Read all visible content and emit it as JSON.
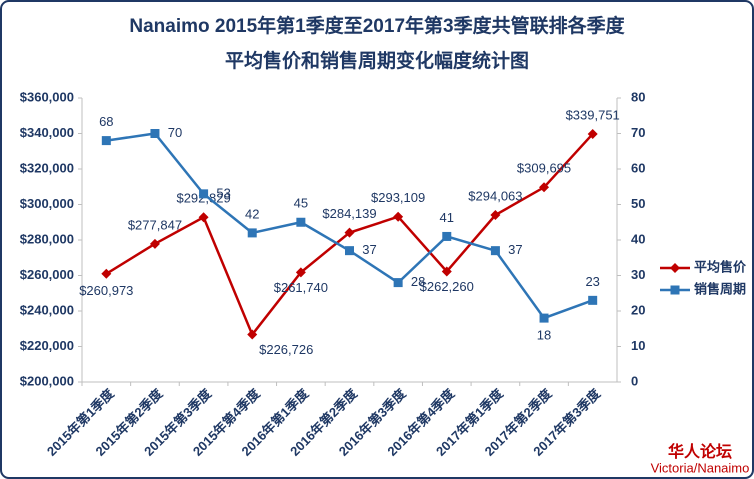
{
  "chart_data": {
    "type": "line",
    "title": "Nanaimo 2015年第1季度至2017年第3季度共管联排各季度",
    "subtitle": "平均售价和销售周期变化幅度统计图",
    "categories": [
      "2015年第1季度",
      "2015年第2季度",
      "2015年第3季度",
      "2015年第4季度",
      "2016年第1季度",
      "2016年第2季度",
      "2016年第3季度",
      "2016年第4季度",
      "2017年第1季度",
      "2017年第2季度",
      "2017年第3季度"
    ],
    "series": [
      {
        "name": "平均售价",
        "color": "#c00000",
        "axis": "y",
        "values": [
          260973,
          277847,
          292829,
          226726,
          261740,
          284139,
          293109,
          262260,
          294063,
          309695,
          339751
        ],
        "value_labels": [
          "$260,973",
          "$277,847",
          "$292,829",
          "$226,726",
          "$261,740",
          "$284,139",
          "$293,109",
          "$262,260",
          "$294,063",
          "$309,695",
          "$339,751"
        ]
      },
      {
        "name": "销售周期",
        "color": "#2e75b6",
        "axis": "y2",
        "values": [
          68,
          70,
          53,
          42,
          45,
          37,
          28,
          41,
          37,
          18,
          23
        ]
      }
    ],
    "ylim": [
      200000,
      360000
    ],
    "yticks": [
      {
        "value": 200000,
        "label": "$200,000"
      },
      {
        "value": 220000,
        "label": "$220,000"
      },
      {
        "value": 240000,
        "label": "$240,000"
      },
      {
        "value": 260000,
        "label": "$260,000"
      },
      {
        "value": 280000,
        "label": "$280,000"
      },
      {
        "value": 300000,
        "label": "$300,000"
      },
      {
        "value": 320000,
        "label": "$320,000"
      },
      {
        "value": 340000,
        "label": "$340,000"
      },
      {
        "value": 360000,
        "label": "$360,000"
      }
    ],
    "y2lim": [
      0,
      80
    ],
    "y2ticks": [
      0,
      10,
      20,
      30,
      40,
      50,
      60,
      70,
      80
    ],
    "legend": "right"
  },
  "brand": {
    "forum": "华人论坛",
    "region": "Victoria/Nanaimo"
  }
}
